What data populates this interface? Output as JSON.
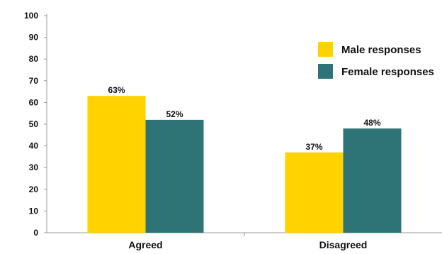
{
  "chart_data": {
    "type": "bar",
    "categories": [
      "Agreed",
      "Disagreed"
    ],
    "series": [
      {
        "name": "Male responses",
        "values": [
          63,
          37
        ],
        "labels": [
          "63%",
          "37%"
        ],
        "color": "#FFD200"
      },
      {
        "name": "Female responses",
        "values": [
          52,
          48
        ],
        "labels": [
          "52%",
          "48%"
        ],
        "color": "#2E7477"
      }
    ],
    "yticks": [
      "0",
      "10",
      "20",
      "30",
      "40",
      "50",
      "60",
      "70",
      "80",
      "90",
      "100"
    ],
    "ylim": [
      0,
      100
    ],
    "legend_position": "top-right",
    "grid": false
  }
}
